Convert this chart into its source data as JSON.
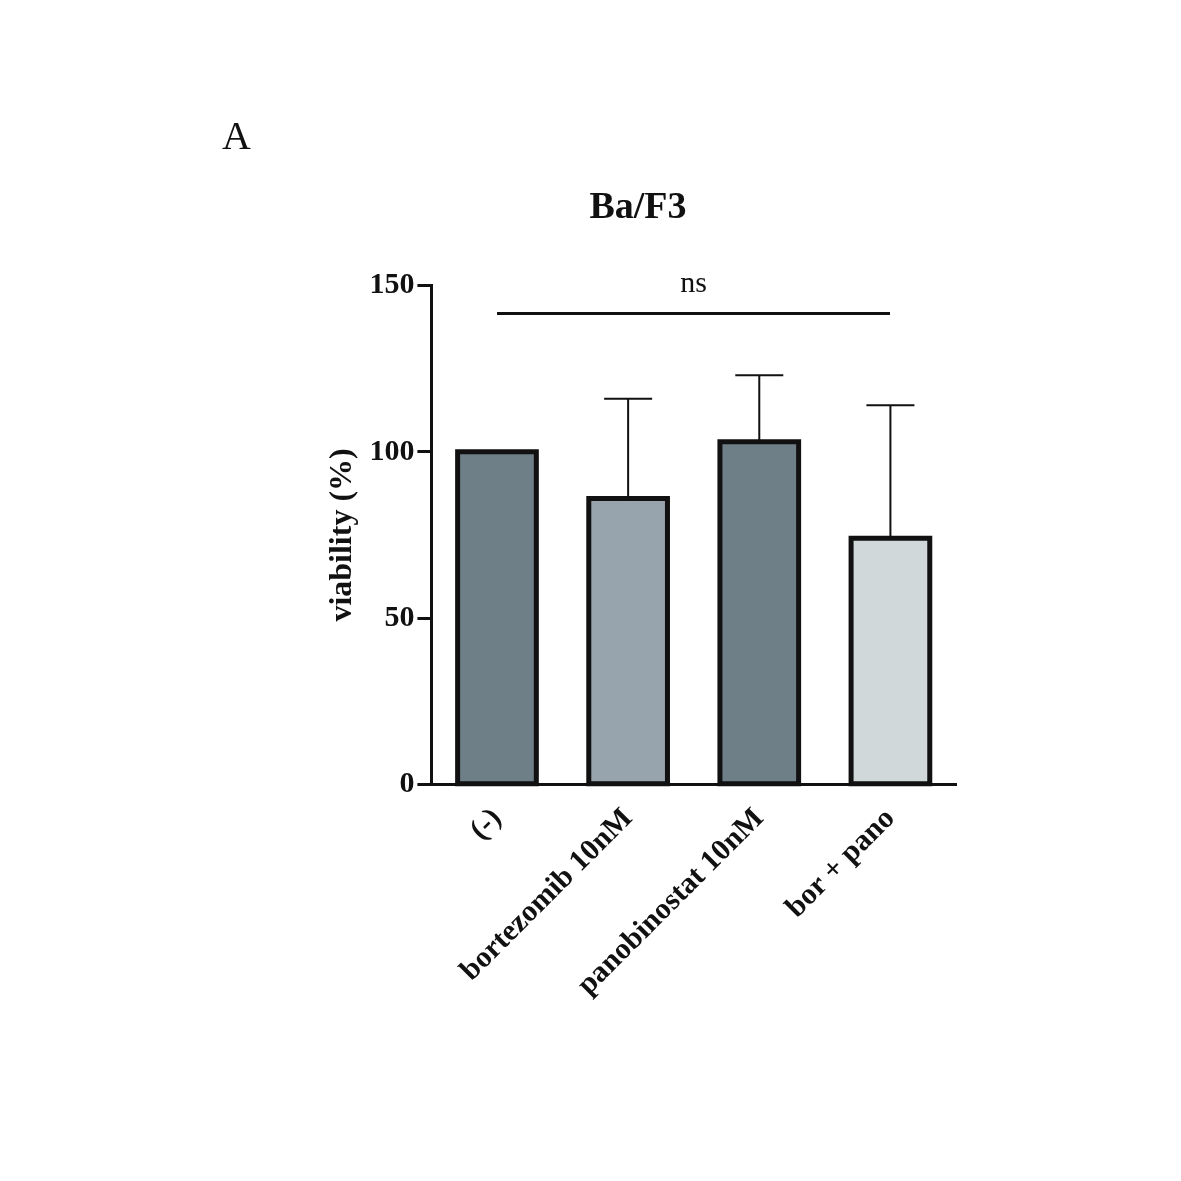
{
  "chart_data": {
    "type": "bar",
    "title": "Ba/F3",
    "ylabel": "viability (%)",
    "categories": [
      "(-)",
      "bortezomib 10nM",
      "panobinostat 10nM",
      "bor + pano"
    ],
    "values": [
      100,
      86,
      103,
      74
    ],
    "colors": [
      "#6f7f87",
      "#97a3ad",
      "#6f7f87",
      "#d0d8da"
    ],
    "errors": [
      null,
      [
        86,
        116
      ],
      [
        103,
        123
      ],
      [
        74,
        114
      ]
    ],
    "ylim": [
      0,
      150
    ],
    "yticks": [
      0,
      50,
      100,
      150
    ],
    "grid": false,
    "legend": false,
    "annotations": [
      "A",
      "ns"
    ]
  }
}
